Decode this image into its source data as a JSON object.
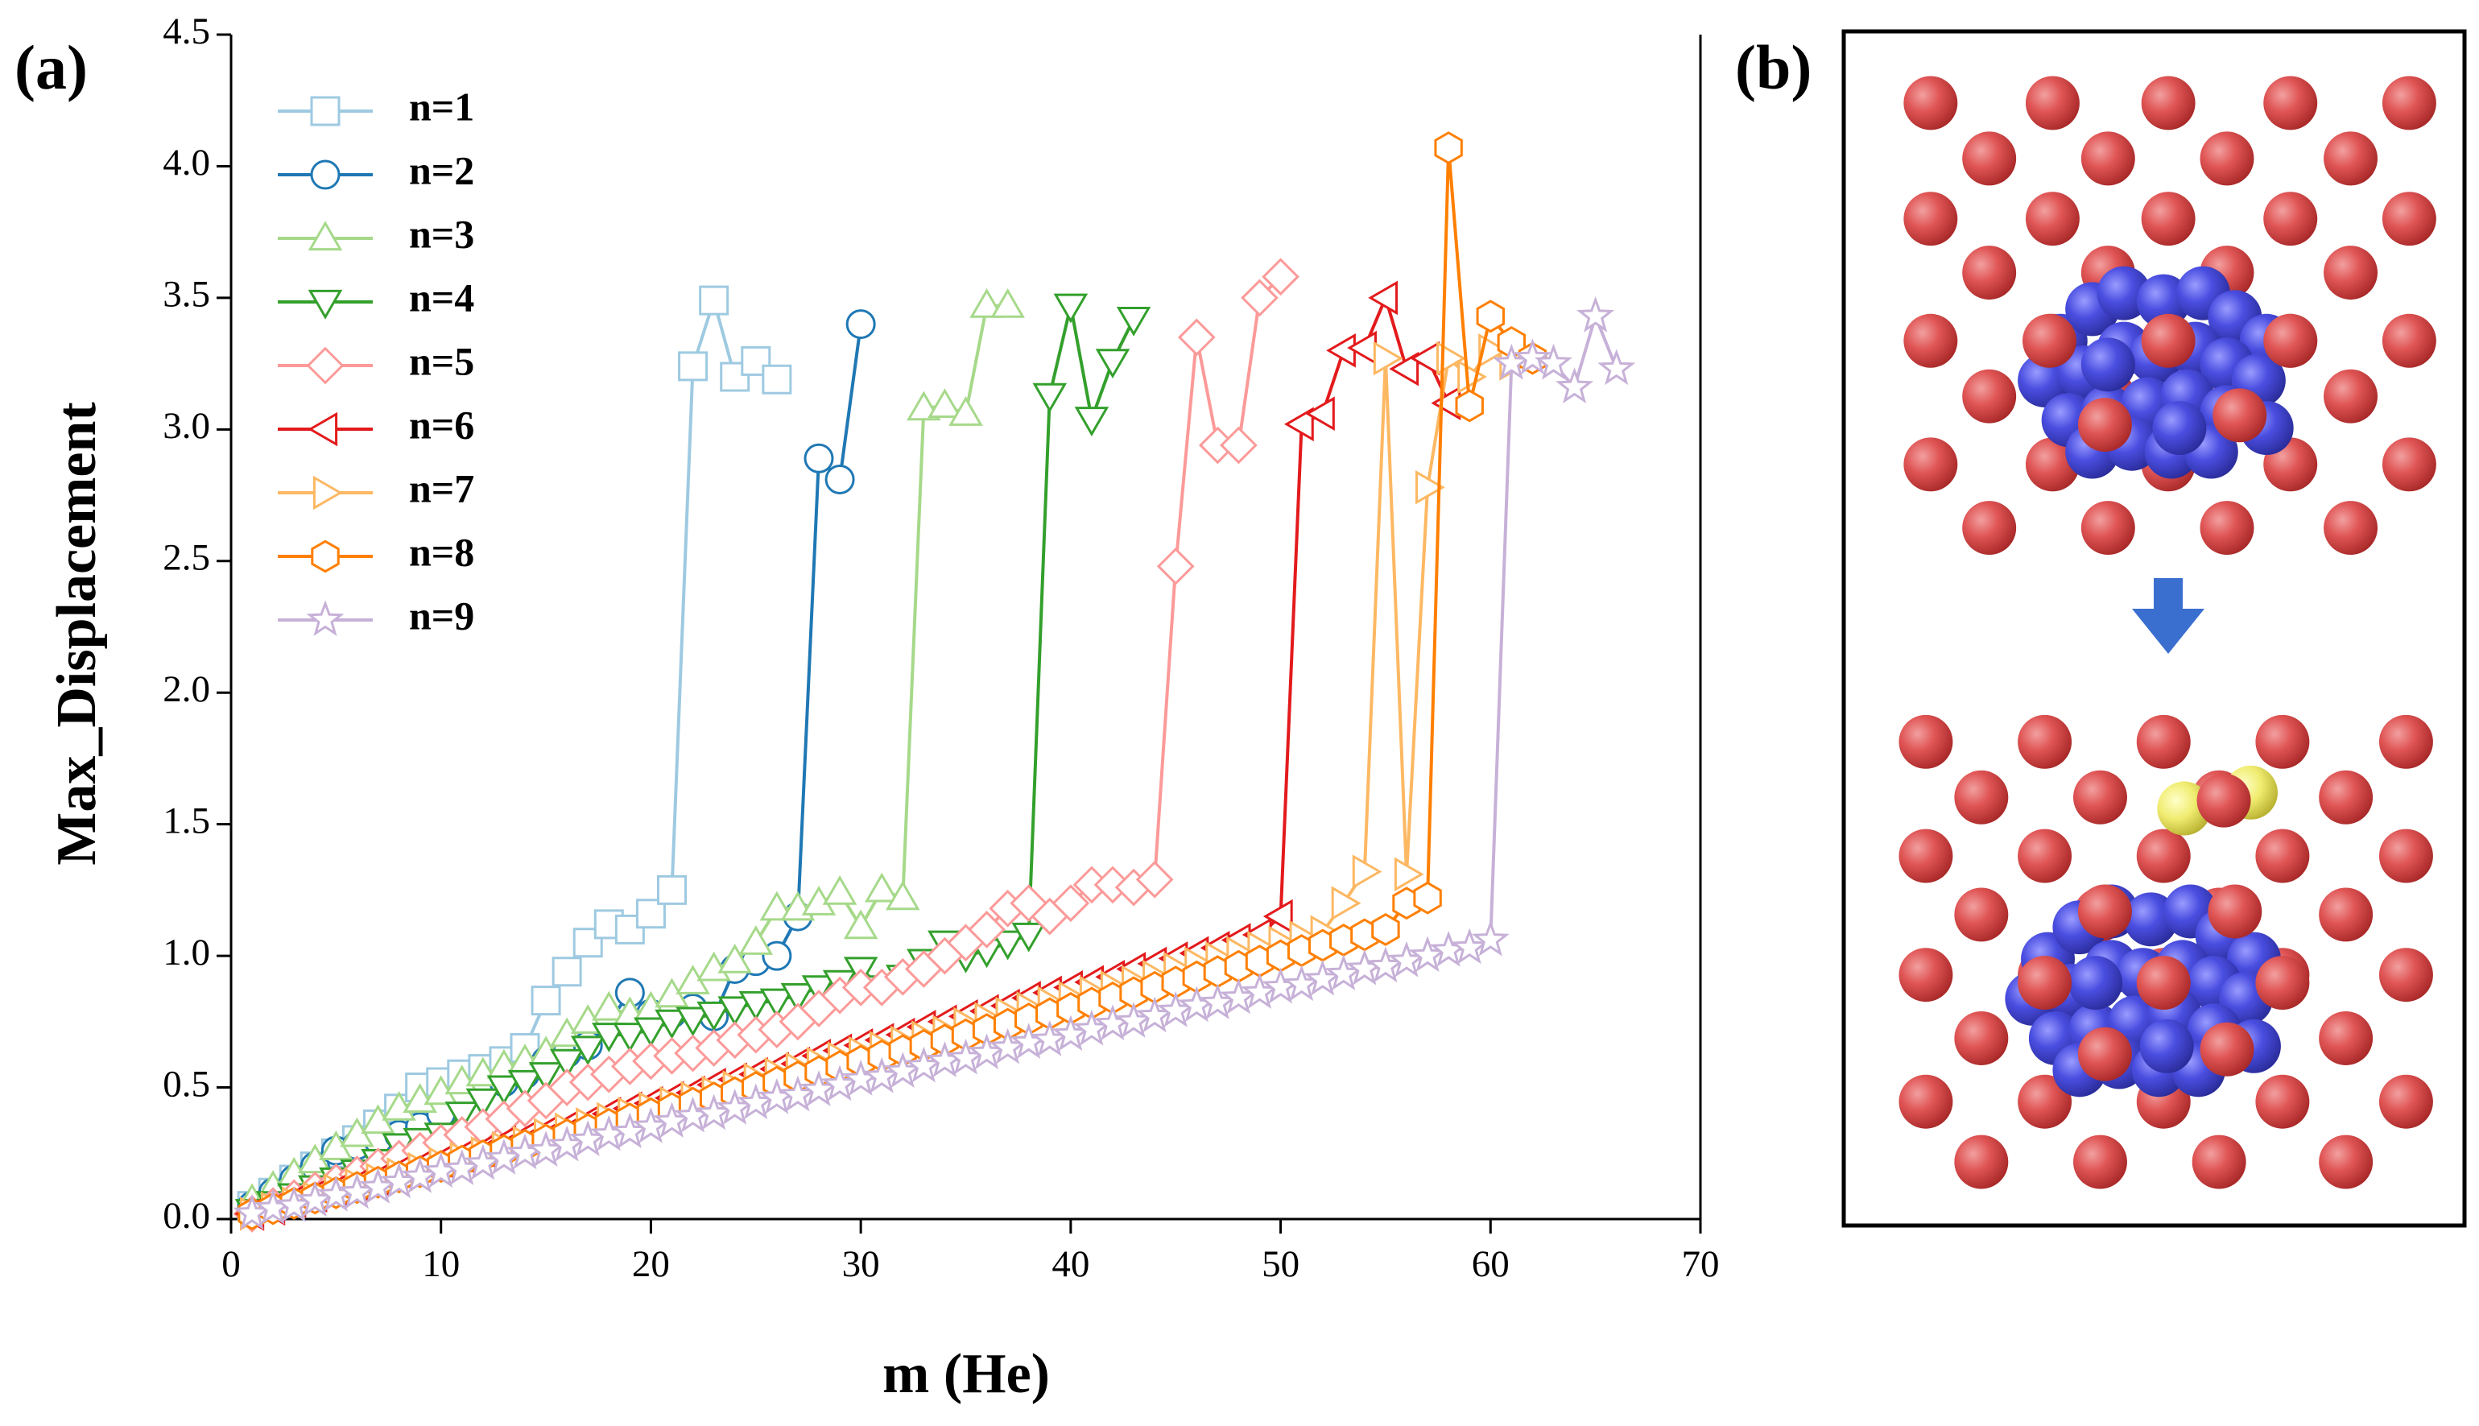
{
  "chart_data": {
    "type": "line",
    "panel_labels": [
      "(a)",
      "(b)"
    ],
    "x_label": "m (He)",
    "y_label": "Max_Displacement",
    "xlim": [
      0,
      70
    ],
    "xticks": [
      0,
      10,
      20,
      30,
      40,
      50,
      60,
      70
    ],
    "ylim": [
      0,
      4.5
    ],
    "yticks": [
      {
        "value": 0,
        "label": "0.0"
      },
      {
        "value": 0.5,
        "label": "0.5"
      },
      {
        "value": 1,
        "label": "1.0"
      },
      {
        "value": 1.5,
        "label": "1.5"
      },
      {
        "value": 2,
        "label": "2.0"
      },
      {
        "value": 2.5,
        "label": "2.5"
      },
      {
        "value": 3,
        "label": "3.0"
      },
      {
        "value": 3.5,
        "label": "3.5"
      },
      {
        "value": 4,
        "label": "4.0"
      },
      {
        "value": 4.5,
        "label": "4.5"
      }
    ],
    "legend": "upper left",
    "x": [
      1,
      2,
      3,
      4,
      5,
      6,
      7,
      8,
      9,
      10,
      11,
      12,
      13,
      14,
      15,
      16,
      17,
      18,
      19,
      20,
      21,
      22,
      23,
      24,
      25,
      26,
      27,
      28,
      29,
      30,
      31,
      32,
      33,
      34,
      35,
      36,
      37,
      38,
      39,
      40,
      41,
      42,
      43,
      44,
      45,
      46,
      47,
      48,
      49,
      50,
      51,
      52,
      53,
      54,
      55,
      56,
      57,
      58,
      59,
      60,
      61,
      62,
      63,
      64,
      65,
      66
    ],
    "series": [
      {
        "name": "n=1",
        "color": "#9ecae1",
        "marker": "square",
        "values": [
          0.05,
          0.1,
          0.15,
          0.2,
          0.25,
          0.3,
          0.36,
          0.42,
          0.5,
          0.52,
          0.55,
          0.57,
          0.6,
          0.65,
          0.83,
          0.94,
          1.05,
          1.12,
          1.1,
          1.16,
          1.25,
          3.24,
          3.49,
          3.2,
          3.26,
          3.19,
          null,
          null,
          null,
          null,
          null,
          null,
          null,
          null,
          null,
          null,
          null,
          null,
          null,
          null,
          null,
          null,
          null,
          null,
          null,
          null,
          null,
          null,
          null,
          null,
          null,
          null,
          null,
          null,
          null,
          null,
          null,
          null,
          null,
          null,
          null,
          null,
          null,
          null,
          null,
          null
        ]
      },
      {
        "name": "n=2",
        "color": "#1f78b4",
        "marker": "circle",
        "values": [
          0.05,
          0.1,
          0.15,
          0.2,
          0.26,
          0.28,
          0.3,
          0.32,
          0.35,
          0.4,
          0.45,
          0.5,
          0.52,
          0.55,
          0.6,
          0.63,
          0.66,
          0.75,
          0.86,
          0.78,
          0.78,
          0.8,
          0.77,
          0.95,
          0.98,
          1.0,
          1.15,
          2.89,
          2.81,
          3.4,
          null,
          null,
          null,
          null,
          null,
          null,
          null,
          null,
          null,
          null,
          null,
          null,
          null,
          null,
          null,
          null,
          null,
          null,
          null,
          null,
          null,
          null,
          null,
          null,
          null,
          null,
          null,
          null,
          null,
          null,
          null,
          null,
          null,
          null,
          null,
          null
        ]
      },
      {
        "name": "n=3",
        "color": "#a6d98a",
        "marker": "triangle-up",
        "values": [
          0.07,
          0.12,
          0.17,
          0.22,
          0.27,
          0.32,
          0.37,
          0.42,
          0.45,
          0.48,
          0.52,
          0.55,
          0.58,
          0.6,
          0.63,
          0.7,
          0.75,
          0.8,
          0.78,
          0.8,
          0.85,
          0.9,
          0.95,
          0.98,
          1.05,
          1.18,
          1.18,
          1.2,
          1.24,
          1.11,
          1.25,
          1.22,
          3.08,
          3.09,
          3.06,
          3.47,
          3.47,
          null,
          null,
          null,
          null,
          null,
          null,
          null,
          null,
          null,
          null,
          null,
          null,
          null,
          null,
          null,
          null,
          null,
          null,
          null,
          null,
          null,
          null,
          null,
          null,
          null,
          null,
          null,
          null,
          null
        ]
      },
      {
        "name": "n=4",
        "color": "#33a02c",
        "marker": "triangle-down",
        "values": [
          0.03,
          0.06,
          0.09,
          0.12,
          0.15,
          0.18,
          0.22,
          0.28,
          0.3,
          0.32,
          0.4,
          0.45,
          0.5,
          0.52,
          0.55,
          0.6,
          0.65,
          0.7,
          0.7,
          0.72,
          0.75,
          0.76,
          0.78,
          0.8,
          0.82,
          0.83,
          0.85,
          0.88,
          0.9,
          0.95,
          0.88,
          0.92,
          0.98,
          1.05,
          1.0,
          1.02,
          1.05,
          1.08,
          3.13,
          3.47,
          3.04,
          3.26,
          3.42,
          null,
          null,
          null,
          null,
          null,
          null,
          null,
          null,
          null,
          null,
          null,
          null,
          null,
          null,
          null,
          null,
          null,
          null,
          null,
          null,
          null,
          null,
          null
        ]
      },
      {
        "name": "n=5",
        "color": "#fb9a99",
        "marker": "diamond",
        "values": [
          0.02,
          0.05,
          0.08,
          0.11,
          0.14,
          0.17,
          0.2,
          0.23,
          0.26,
          0.29,
          0.32,
          0.35,
          0.38,
          0.42,
          0.45,
          0.5,
          0.52,
          0.55,
          0.58,
          0.6,
          0.62,
          0.63,
          0.65,
          0.68,
          0.7,
          0.72,
          0.75,
          0.8,
          0.85,
          0.88,
          0.88,
          0.92,
          0.95,
          1.0,
          1.05,
          1.1,
          1.18,
          1.2,
          1.15,
          1.2,
          1.27,
          1.27,
          1.26,
          1.29,
          2.48,
          3.35,
          2.94,
          2.94,
          3.5,
          3.58,
          null,
          null,
          null,
          null,
          null,
          null,
          null,
          null,
          null,
          null,
          null,
          null,
          null,
          null,
          null,
          null
        ]
      },
      {
        "name": "n=6",
        "color": "#e31a1c",
        "marker": "triangle-left",
        "values": [
          0.02,
          0.04,
          0.07,
          0.09,
          0.11,
          0.13,
          0.15,
          0.18,
          0.2,
          0.22,
          0.24,
          0.26,
          0.29,
          0.31,
          0.33,
          0.35,
          0.37,
          0.4,
          0.42,
          0.44,
          0.46,
          0.48,
          0.51,
          0.53,
          0.55,
          0.57,
          0.59,
          0.62,
          0.64,
          0.66,
          0.68,
          0.7,
          0.73,
          0.75,
          0.77,
          0.79,
          0.81,
          0.84,
          0.86,
          0.88,
          0.9,
          0.92,
          0.95,
          0.97,
          0.99,
          1.01,
          1.03,
          1.06,
          1.08,
          1.15,
          3.02,
          3.06,
          3.3,
          3.31,
          3.5,
          3.23,
          3.27,
          3.1,
          null,
          null,
          null,
          null,
          null,
          null,
          null,
          null
        ]
      },
      {
        "name": "n=7",
        "color": "#fdb863",
        "marker": "triangle-right",
        "values": [
          0.02,
          0.04,
          0.06,
          0.08,
          0.11,
          0.13,
          0.15,
          0.17,
          0.19,
          0.21,
          0.23,
          0.25,
          0.27,
          0.29,
          0.32,
          0.34,
          0.36,
          0.38,
          0.4,
          0.42,
          0.44,
          0.46,
          0.48,
          0.5,
          0.53,
          0.55,
          0.57,
          0.59,
          0.61,
          0.63,
          0.65,
          0.67,
          0.69,
          0.71,
          0.74,
          0.76,
          0.78,
          0.8,
          0.82,
          0.84,
          0.86,
          0.88,
          0.9,
          0.92,
          0.95,
          0.97,
          0.99,
          1.01,
          1.03,
          1.05,
          1.07,
          1.09,
          1.2,
          1.32,
          3.27,
          1.31,
          2.78,
          3.27,
          3.2,
          3.3,
          3.25,
          null,
          null,
          null,
          null,
          null
        ]
      },
      {
        "name": "n=8",
        "color": "#ff7f00",
        "marker": "hexagon",
        "values": [
          0.02,
          0.04,
          0.06,
          0.08,
          0.1,
          0.12,
          0.14,
          0.16,
          0.18,
          0.2,
          0.22,
          0.24,
          0.26,
          0.28,
          0.3,
          0.32,
          0.34,
          0.36,
          0.38,
          0.4,
          0.42,
          0.44,
          0.46,
          0.48,
          0.5,
          0.52,
          0.54,
          0.56,
          0.58,
          0.6,
          0.62,
          0.64,
          0.66,
          0.68,
          0.7,
          0.72,
          0.74,
          0.76,
          0.78,
          0.8,
          0.82,
          0.84,
          0.86,
          0.88,
          0.9,
          0.92,
          0.94,
          0.96,
          0.98,
          1.0,
          1.02,
          1.04,
          1.06,
          1.08,
          1.1,
          1.2,
          1.22,
          4.07,
          3.09,
          3.43,
          3.33,
          3.27,
          null,
          null,
          null,
          null
        ]
      },
      {
        "name": "n=9",
        "color": "#c7b1d8",
        "marker": "star",
        "values": [
          0.02,
          0.04,
          0.05,
          0.07,
          0.09,
          0.1,
          0.12,
          0.14,
          0.16,
          0.18,
          0.19,
          0.21,
          0.23,
          0.25,
          0.26,
          0.28,
          0.3,
          0.32,
          0.33,
          0.35,
          0.37,
          0.39,
          0.4,
          0.42,
          0.44,
          0.46,
          0.47,
          0.49,
          0.51,
          0.53,
          0.54,
          0.56,
          0.58,
          0.6,
          0.61,
          0.63,
          0.65,
          0.67,
          0.68,
          0.7,
          0.72,
          0.74,
          0.75,
          0.77,
          0.79,
          0.81,
          0.82,
          0.84,
          0.86,
          0.88,
          0.89,
          0.91,
          0.93,
          0.95,
          0.96,
          0.98,
          1.0,
          1.02,
          1.03,
          1.06,
          3.25,
          3.27,
          3.25,
          3.16,
          3.43,
          3.23
        ]
      }
    ]
  }
}
